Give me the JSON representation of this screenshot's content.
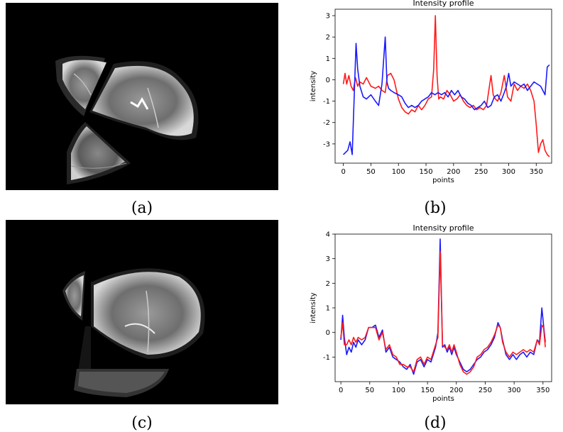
{
  "captions": {
    "a": "(a)",
    "b": "(b)",
    "c": "(c)",
    "d": "(d)"
  },
  "colors": {
    "red": "#ff1a1a",
    "blue": "#1a1aff",
    "background": "#000000"
  },
  "images": {
    "a": {
      "content": "MRI brain slice, misaligned wedge segments (before registration)"
    },
    "c": {
      "content": "MRI brain slice, aligned wedge segments (after registration)"
    }
  },
  "chart_data": [
    {
      "type": "line",
      "title": "Intensity profile",
      "xlabel": "points",
      "ylabel": "intensity",
      "xlim": [
        -15,
        378
      ],
      "ylim": [
        -3.9,
        3.3
      ],
      "xticks": [
        0,
        50,
        100,
        150,
        200,
        250,
        300,
        350
      ],
      "yticks": [
        -3,
        -2,
        -1,
        0,
        1,
        2,
        3
      ],
      "series": [
        {
          "color": "red",
          "x": [
            0,
            3,
            6,
            10,
            14,
            18,
            22,
            26,
            30,
            36,
            42,
            50,
            58,
            64,
            70,
            76,
            80,
            86,
            92,
            100,
            106,
            112,
            118,
            124,
            130,
            136,
            142,
            148,
            154,
            160,
            164,
            167,
            170,
            173,
            176,
            182,
            188,
            194,
            200,
            206,
            212,
            218,
            224,
            230,
            236,
            242,
            248,
            254,
            260,
            264,
            268,
            272,
            276,
            280,
            286,
            292,
            298,
            304,
            310,
            316,
            322,
            328,
            334,
            340,
            346,
            350,
            354,
            358,
            362,
            366,
            370,
            374
          ],
          "y": [
            -0.2,
            0.3,
            -0.2,
            0.2,
            -0.3,
            -0.5,
            0.1,
            -0.3,
            -0.1,
            -0.2,
            0.1,
            -0.3,
            -0.4,
            -0.3,
            -0.5,
            -0.6,
            0.2,
            0.3,
            0,
            -0.9,
            -1.3,
            -1.5,
            -1.6,
            -1.4,
            -1.5,
            -1.2,
            -1.4,
            -1.2,
            -0.9,
            -0.8,
            0.5,
            3,
            0.2,
            -0.9,
            -0.8,
            -0.9,
            -0.5,
            -0.7,
            -1.0,
            -0.9,
            -0.7,
            -1.0,
            -1.2,
            -1.3,
            -1.2,
            -1.4,
            -1.3,
            -1.4,
            -1.2,
            -0.5,
            0.2,
            -0.7,
            -0.9,
            -1.0,
            -0.6,
            0.2,
            -0.8,
            -1.0,
            -0.2,
            -0.5,
            -0.3,
            -0.4,
            -0.2,
            -0.5,
            -1.0,
            -2.1,
            -3.4,
            -3.0,
            -2.8,
            -3.3,
            -3.5,
            -3.6
          ]
        },
        {
          "color": "blue",
          "x": [
            0,
            4,
            8,
            12,
            16,
            20,
            23,
            26,
            30,
            36,
            42,
            50,
            58,
            64,
            70,
            76,
            79,
            82,
            86,
            92,
            100,
            106,
            112,
            118,
            124,
            130,
            136,
            142,
            148,
            154,
            160,
            166,
            172,
            178,
            184,
            190,
            196,
            202,
            208,
            214,
            220,
            226,
            232,
            238,
            244,
            250,
            256,
            262,
            268,
            274,
            280,
            286,
            292,
            296,
            300,
            304,
            310,
            316,
            322,
            328,
            334,
            340,
            346,
            352,
            358,
            362,
            366,
            370,
            374
          ],
          "y": [
            -3.5,
            -3.4,
            -3.3,
            -2.9,
            -3.5,
            -0.5,
            1.7,
            0.5,
            -0.3,
            -0.8,
            -0.9,
            -0.7,
            -1.0,
            -1.2,
            -0.2,
            2.0,
            -0.1,
            -0.4,
            -0.5,
            -0.6,
            -0.7,
            -0.8,
            -1.1,
            -1.3,
            -1.2,
            -1.3,
            -1.2,
            -1.0,
            -0.9,
            -0.8,
            -0.6,
            -0.7,
            -0.6,
            -0.7,
            -0.6,
            -0.8,
            -0.5,
            -0.7,
            -0.5,
            -0.8,
            -0.9,
            -1.1,
            -1.2,
            -1.4,
            -1.3,
            -1.2,
            -1.0,
            -1.3,
            -1.2,
            -0.8,
            -0.7,
            -1.0,
            -0.6,
            -0.3,
            0.3,
            -0.3,
            -0.1,
            -0.2,
            -0.3,
            -0.2,
            -0.5,
            -0.3,
            -0.1,
            -0.2,
            -0.3,
            -0.5,
            -0.7,
            0.6,
            0.7
          ]
        }
      ]
    },
    {
      "type": "line",
      "title": "Intensity profile",
      "xlabel": "points",
      "ylabel": "intensity",
      "xlim": [
        -10,
        365
      ],
      "ylim": [
        -2.0,
        4.0
      ],
      "xticks": [
        0,
        50,
        100,
        150,
        200,
        250,
        300,
        350
      ],
      "yticks": [
        -1,
        0,
        1,
        2,
        3,
        4
      ],
      "series": [
        {
          "color": "blue",
          "x": [
            0,
            3,
            6,
            10,
            14,
            18,
            22,
            26,
            30,
            36,
            42,
            48,
            54,
            60,
            66,
            72,
            78,
            84,
            90,
            96,
            102,
            108,
            114,
            120,
            126,
            132,
            138,
            144,
            150,
            156,
            160,
            164,
            168,
            172,
            176,
            180,
            184,
            188,
            192,
            196,
            200,
            206,
            212,
            218,
            224,
            230,
            236,
            242,
            248,
            254,
            260,
            266,
            272,
            276,
            280,
            286,
            292,
            298,
            304,
            310,
            316,
            322,
            328,
            334,
            340,
            344,
            348,
            351,
            354
          ],
          "y": [
            -0.3,
            0.7,
            -0.2,
            -0.9,
            -0.6,
            -0.8,
            -0.4,
            -0.6,
            -0.3,
            -0.5,
            -0.3,
            0.2,
            0.2,
            0.3,
            -0.2,
            0.1,
            -0.8,
            -0.6,
            -1.0,
            -1.1,
            -1.2,
            -1.4,
            -1.5,
            -1.3,
            -1.7,
            -1.2,
            -1.1,
            -1.4,
            -1.1,
            -1.2,
            -0.9,
            -0.6,
            0.0,
            3.8,
            -0.6,
            -0.5,
            -0.8,
            -0.6,
            -0.9,
            -0.6,
            -0.9,
            -1.2,
            -1.5,
            -1.6,
            -1.5,
            -1.3,
            -1.1,
            -1.0,
            -0.8,
            -0.7,
            -0.5,
            -0.2,
            0.4,
            0.2,
            -0.3,
            -0.9,
            -1.1,
            -0.9,
            -1.1,
            -0.9,
            -0.8,
            -1.0,
            -0.8,
            -0.9,
            -0.3,
            -0.4,
            1.0,
            0.3,
            -0.4
          ]
        },
        {
          "color": "red",
          "x": [
            0,
            3,
            6,
            10,
            14,
            18,
            22,
            26,
            30,
            36,
            42,
            48,
            54,
            60,
            66,
            72,
            78,
            84,
            90,
            96,
            102,
            108,
            114,
            120,
            126,
            132,
            138,
            144,
            150,
            156,
            160,
            164,
            168,
            172,
            176,
            180,
            184,
            188,
            192,
            196,
            200,
            206,
            212,
            218,
            224,
            230,
            236,
            242,
            248,
            254,
            260,
            266,
            272,
            276,
            280,
            286,
            292,
            298,
            304,
            310,
            316,
            322,
            328,
            334,
            340,
            344,
            348,
            351,
            354
          ],
          "y": [
            -0.2,
            0.4,
            -0.5,
            -0.5,
            -0.3,
            -0.5,
            -0.2,
            -0.4,
            -0.2,
            -0.3,
            -0.2,
            0.2,
            0.2,
            0.2,
            -0.3,
            0.0,
            -0.7,
            -0.5,
            -0.9,
            -1.0,
            -1.3,
            -1.3,
            -1.4,
            -1.4,
            -1.6,
            -1.1,
            -1.0,
            -1.3,
            -1.0,
            -1.1,
            -0.8,
            -0.5,
            -0.2,
            3.3,
            -0.5,
            -0.6,
            -0.7,
            -0.5,
            -0.8,
            -0.5,
            -0.8,
            -1.3,
            -1.6,
            -1.7,
            -1.6,
            -1.4,
            -1.0,
            -0.9,
            -0.7,
            -0.6,
            -0.4,
            -0.1,
            0.3,
            0.2,
            -0.4,
            -0.8,
            -1.0,
            -0.8,
            -0.9,
            -0.8,
            -0.7,
            -0.8,
            -0.7,
            -0.8,
            -0.3,
            -0.5,
            0.3,
            0.2,
            -0.6
          ]
        }
      ]
    }
  ]
}
